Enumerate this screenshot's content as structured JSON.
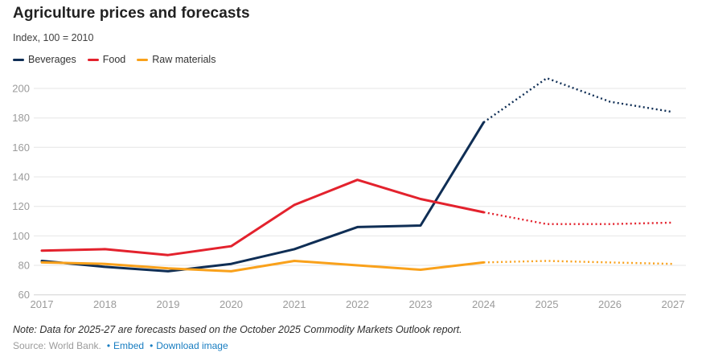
{
  "header": {
    "title": "Agriculture prices and forecasts",
    "subtitle": "Index, 100 = 2010"
  },
  "legend": [
    {
      "label": "Beverages",
      "color": "#0f2e55"
    },
    {
      "label": "Food",
      "color": "#e3222d"
    },
    {
      "label": "Raw materials",
      "color": "#f9a11b"
    }
  ],
  "chart_data": {
    "type": "line",
    "title": "Agriculture prices and forecasts",
    "subtitle": "Index, 100 = 2010",
    "x": [
      2017,
      2018,
      2019,
      2020,
      2021,
      2022,
      2023,
      2024,
      2025,
      2026,
      2027
    ],
    "series": [
      {
        "name": "Beverages",
        "color": "#0f2e55",
        "values": [
          83,
          79,
          76,
          81,
          91,
          106,
          107,
          177,
          207,
          191,
          184
        ],
        "forecast_from_index": 7
      },
      {
        "name": "Food",
        "color": "#e3222d",
        "values": [
          90,
          91,
          87,
          93,
          121,
          138,
          125,
          116,
          108,
          108,
          109
        ],
        "forecast_from_index": 7
      },
      {
        "name": "Raw materials",
        "color": "#f9a11b",
        "values": [
          82,
          81,
          78,
          76,
          83,
          80,
          77,
          82,
          83,
          82,
          81
        ],
        "forecast_from_index": 7
      }
    ],
    "yticks": [
      60,
      80,
      100,
      120,
      140,
      160,
      180,
      200
    ],
    "ylim": [
      60,
      210
    ],
    "xlabel": "",
    "ylabel": "Index, 100 = 2010",
    "grid": true,
    "legend_position": "top-left",
    "forecast_style": "dotted",
    "forecast_note": "2025-27 values are forecasts (dotted segments)"
  },
  "colors": {
    "gridline": "#e6e6e6",
    "baseline": "#d2d2d2",
    "tick_label": "#9b9b9b",
    "link": "#187dc1"
  },
  "footer": {
    "note": "Note: Data for 2025-27 are forecasts based on the October 2025 Commodity Markets Outlook report.",
    "source": "Source: World Bank.",
    "bullet": "•",
    "links": [
      {
        "label": "Embed"
      },
      {
        "label": "Download image"
      }
    ]
  }
}
